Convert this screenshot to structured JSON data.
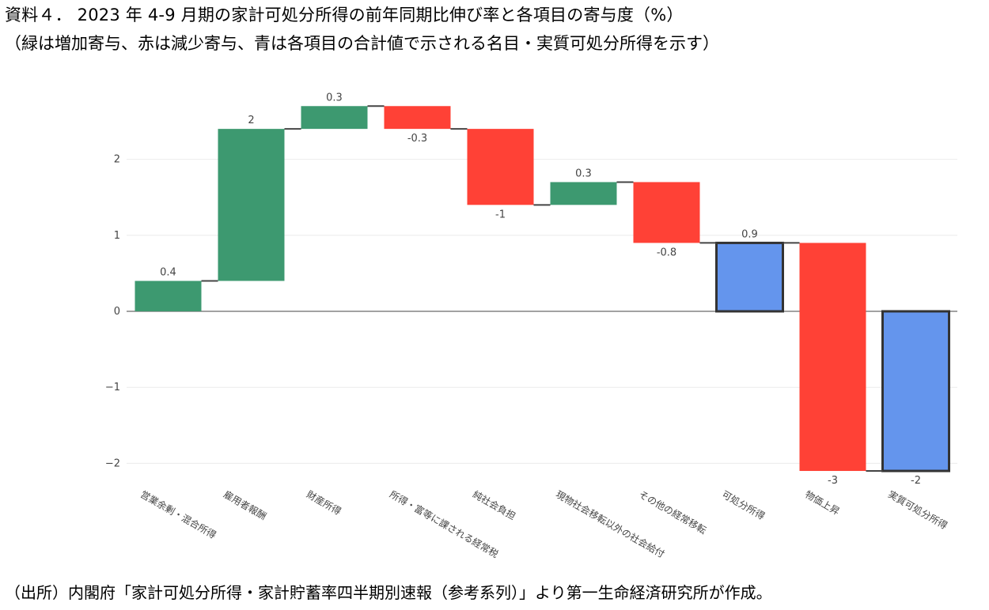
{
  "title": "資料４． 2023 年 4-9 月期の家計可処分所得の前年同期比伸び率と各項目の寄与度（%）",
  "subtitle": "（緑は増加寄与、赤は減少寄与、青は各項目の合計値で示される名目・実質可処分所得を示す）",
  "source": "（出所）内閣府「家計可処分所得・家計貯蓄率四半期別速報（参考系列）」より第一生命経済研究所が作成。",
  "colors": {
    "increase": "#3d9970",
    "decrease": "#ff4136",
    "total": "#6495ed",
    "total_border": "#333333"
  },
  "chart_data": {
    "type": "waterfall",
    "categories": [
      "営業余剰・混合所得",
      "雇用者報酬",
      "財産所得",
      "所得・富等に課される経常税",
      "純社会負担",
      "現物社会移転以外の社会給付",
      "その他の経常移転",
      "可処分所得",
      "物価上昇",
      "実質可処分所得"
    ],
    "measures": [
      "relative",
      "relative",
      "relative",
      "relative",
      "relative",
      "relative",
      "relative",
      "total",
      "relative",
      "total"
    ],
    "values": [
      0.4,
      2.0,
      0.3,
      -0.3,
      -1.0,
      0.3,
      -0.8,
      0.9,
      -3.0,
      -2.1
    ],
    "data_labels": [
      "0.4",
      "2",
      "0.3",
      "-0.3",
      "-1",
      "0.3",
      "-0.8",
      "0.9",
      "-3",
      "-2"
    ],
    "y_ticks": [
      2,
      1,
      0,
      -1,
      -2
    ],
    "y_tick_labels": [
      "2",
      "1",
      "0",
      "−1",
      "−2"
    ],
    "ylim": [
      -2.2,
      2.7
    ],
    "grid": true
  }
}
